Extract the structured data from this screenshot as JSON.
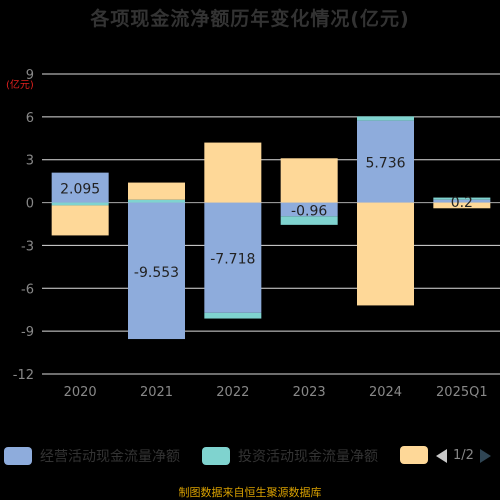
{
  "title": "各项现金流净额历年变化情况(亿元)",
  "unit_label": "(亿元)",
  "source": "制图数据来自恒生聚源数据库",
  "pager": "1/2",
  "colors": {
    "operating": "#8eacdc",
    "investing": "#7fd3cf",
    "financing": "#fed898",
    "axis_text": "#888888",
    "grid": "#dddddd"
  },
  "chart_data": {
    "type": "bar",
    "stacked": true,
    "categories": [
      "2020",
      "2021",
      "2022",
      "2023",
      "2024",
      "2025Q1"
    ],
    "ylim": [
      -12,
      9
    ],
    "yticks": [
      9,
      6,
      3,
      0,
      -3,
      -6,
      -9,
      -12
    ],
    "series": [
      {
        "name": "经营活动现金流量净额",
        "color": "#8eacdc",
        "values": [
          2.095,
          -9.553,
          -7.718,
          -0.96,
          5.736,
          0.2
        ]
      },
      {
        "name": "投资活动现金流量净额",
        "color": "#7fd3cf",
        "values": [
          -0.2,
          0.2,
          -0.4,
          -0.6,
          0.3,
          0.15
        ]
      },
      {
        "name": "",
        "color": "#fed898",
        "values": [
          -2.1,
          1.2,
          4.2,
          3.1,
          -7.2,
          -0.4
        ]
      }
    ],
    "data_labels": [
      "2.095",
      "-9.553",
      "-7.718",
      "-0.96",
      "5.736",
      "0.2"
    ]
  }
}
